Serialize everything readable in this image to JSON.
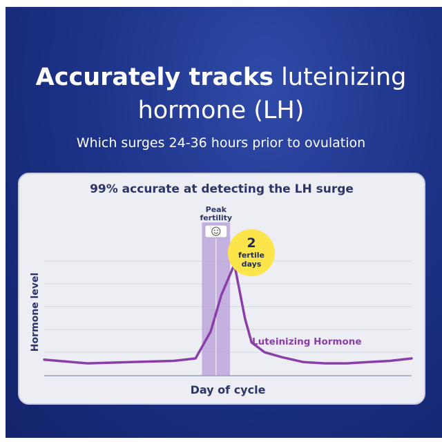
{
  "headline": {
    "bold": "Accurately tracks",
    "light": "luteinizing hormone (LH)"
  },
  "subheadline": "Which surges 24-36 hours prior to ovulation",
  "chart_data": {
    "type": "line",
    "title": "99% accurate at detecting the LH surge",
    "xlabel": "Day of cycle",
    "ylabel": "Hormone level",
    "grid": true,
    "series": [
      {
        "name": "Luteinizing Hormone",
        "color": "#8a3fa8",
        "x": [
          0,
          2,
          4,
          6,
          7,
          7.7,
          8.2,
          8.8,
          9.3,
          9.6,
          10.2,
          11,
          12,
          13,
          14,
          15,
          16,
          17
        ],
        "y": [
          1.2,
          0.9,
          1.0,
          1.1,
          1.3,
          3.5,
          6.5,
          9.0,
          4.5,
          2.6,
          1.8,
          1.4,
          1.0,
          0.9,
          0.9,
          1.0,
          1.1,
          1.3
        ]
      }
    ],
    "ylim": [
      0,
      10
    ],
    "xlim": [
      0,
      17
    ],
    "highlight": {
      "start": 7.3,
      "end": 8.6,
      "label": "Peak fertility",
      "icon": "smiley-icon",
      "color": "#b79cd8"
    },
    "badge": {
      "number": "2",
      "text": "fertile days",
      "color": "#fbe54a"
    }
  }
}
